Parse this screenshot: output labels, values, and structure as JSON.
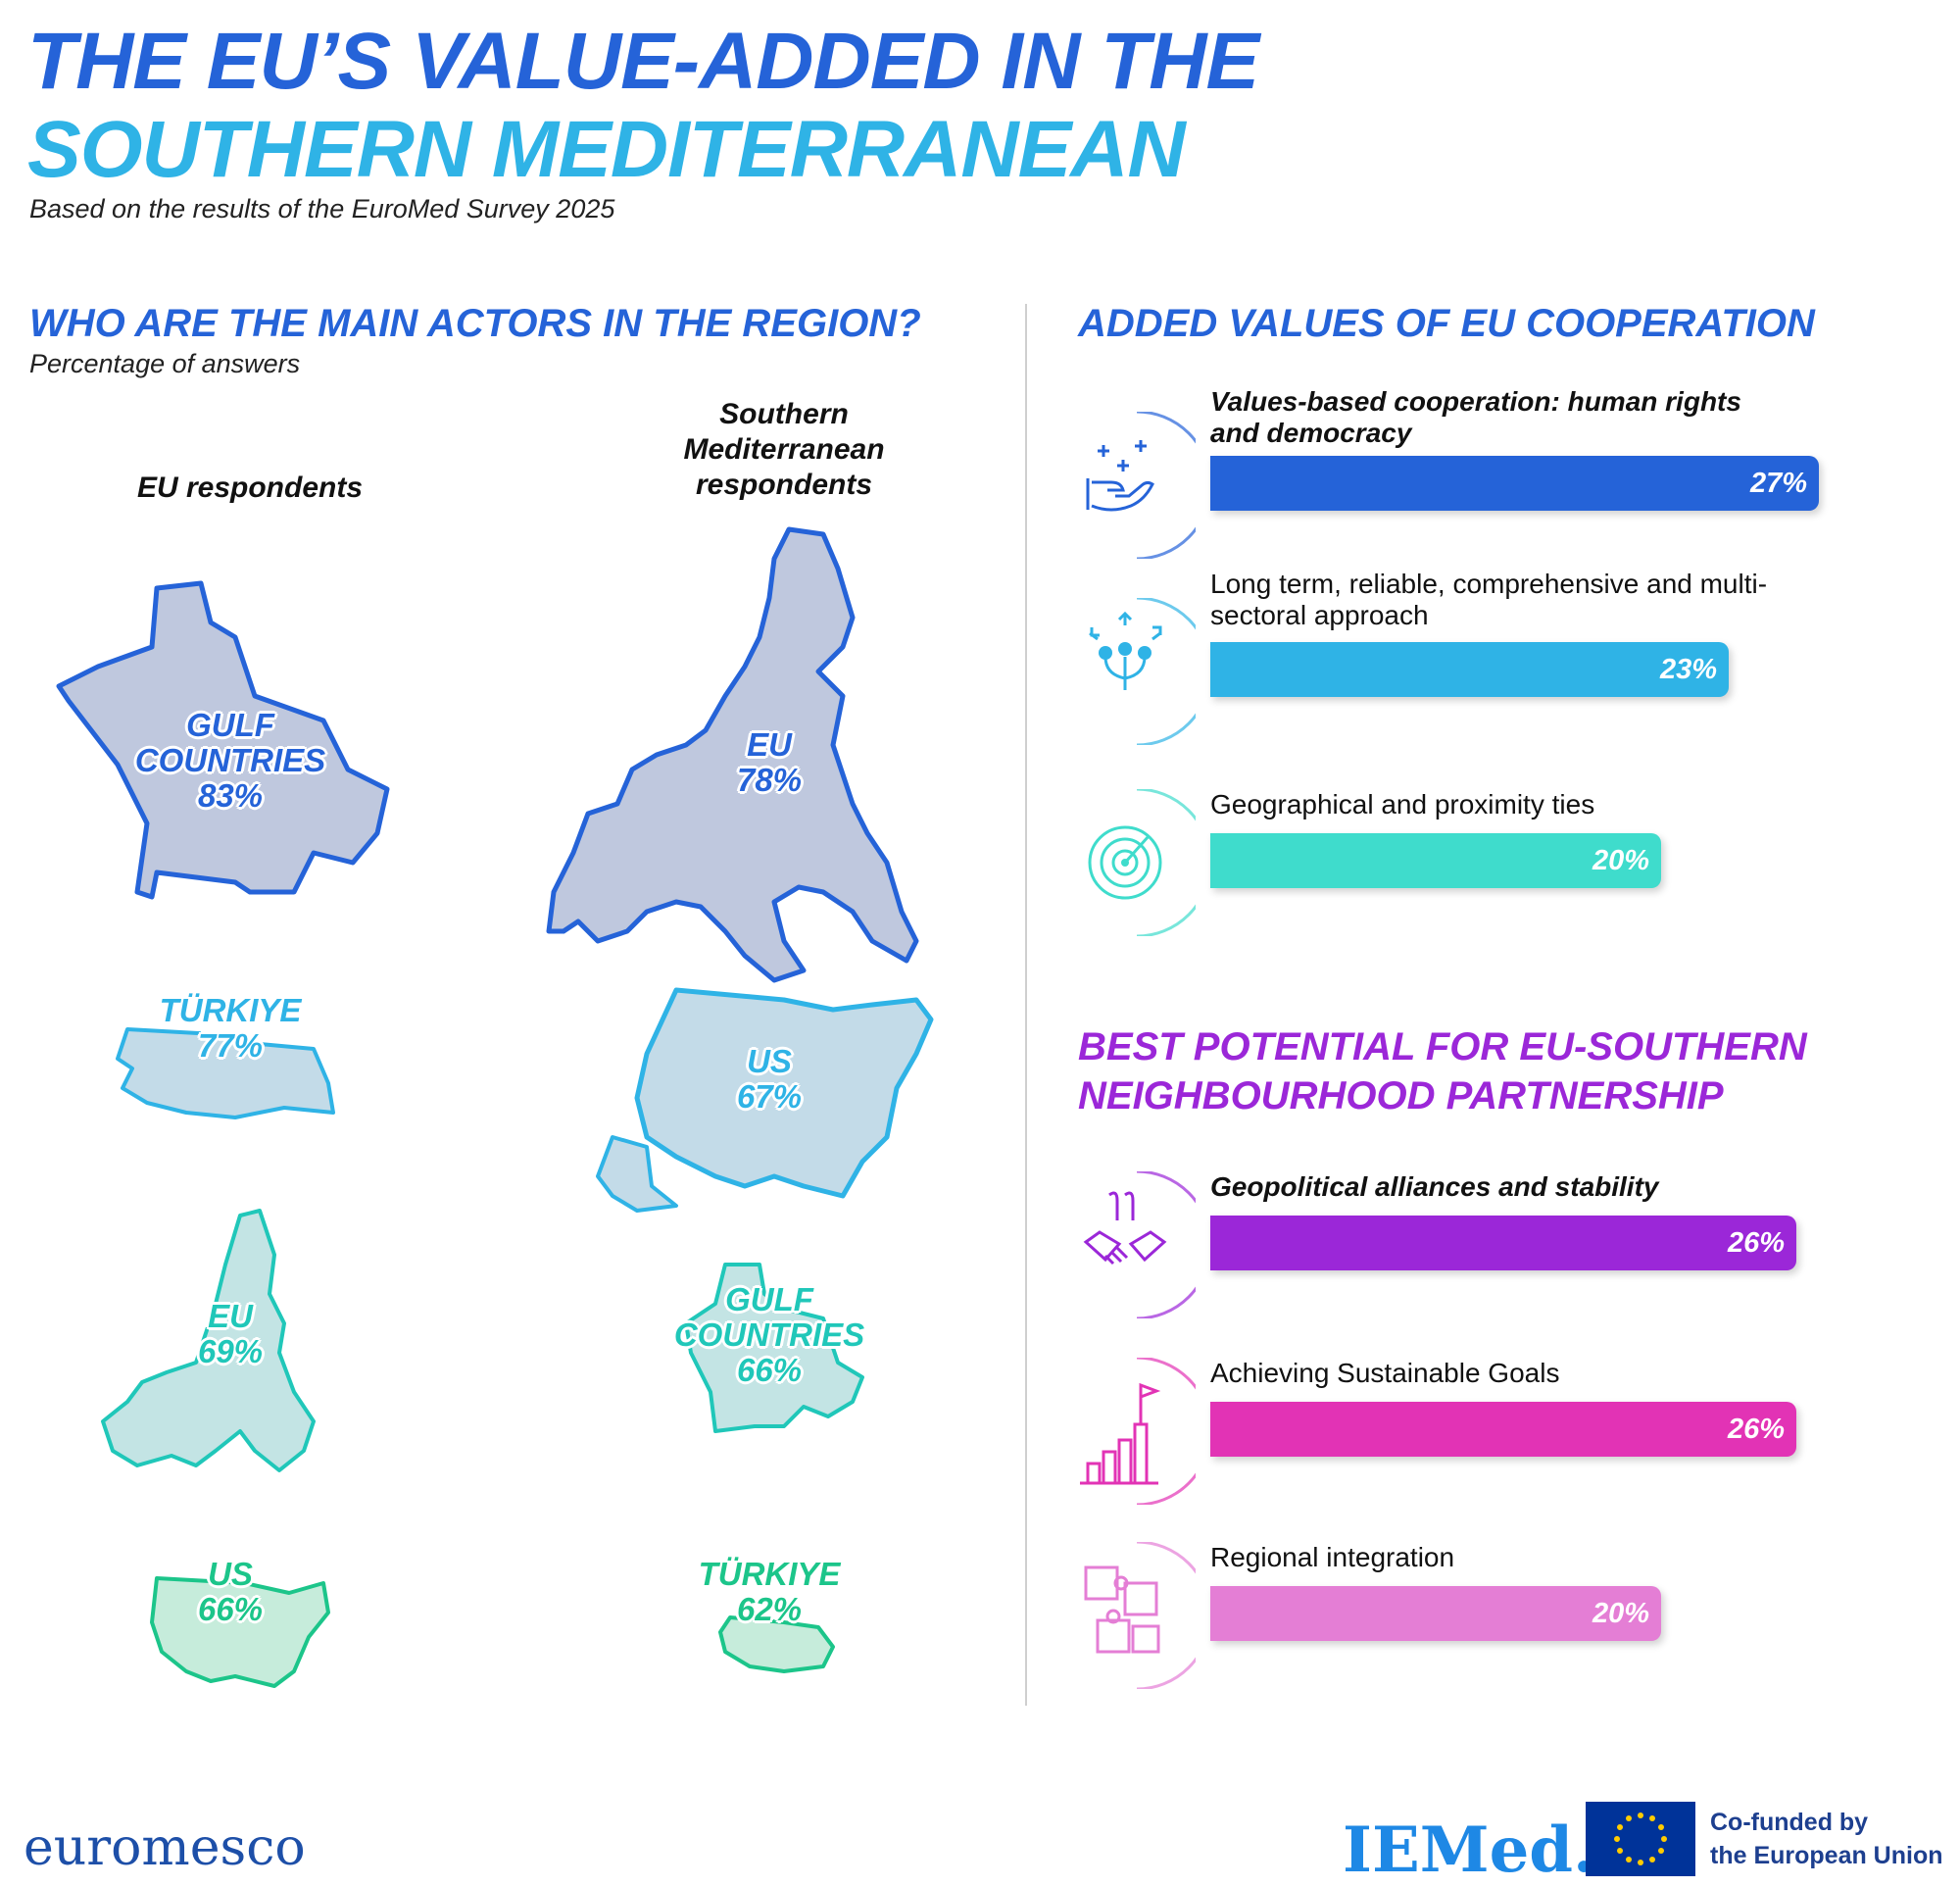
{
  "header": {
    "title_line1": "THE EU’S VALUE-ADDED IN THE",
    "title_line2": "SOUTHERN MEDITERRANEAN",
    "subtitle": "Based on the results of the EuroMed Survey 2025"
  },
  "actors": {
    "heading": "WHO ARE THE MAIN ACTORS IN THE REGION?",
    "note": "Percentage of answers",
    "eu_column_label": "EU respondents",
    "sm_column_label_lines": [
      "Southern",
      "Mediterranean",
      "respondents"
    ]
  },
  "chart_data": [
    {
      "type": "table",
      "title": "WHO ARE THE MAIN ACTORS IN THE REGION?",
      "subtitle": "Percentage of answers",
      "series": [
        {
          "name": "EU respondents",
          "items": [
            {
              "name_lines": [
                "GULF",
                "COUNTRIES"
              ],
              "value": 83,
              "label": "83%",
              "color": "#2563d8"
            },
            {
              "name_lines": [
                "TÜRKIYE"
              ],
              "value": 77,
              "label": "77%",
              "color": "#2fb3e6"
            },
            {
              "name_lines": [
                "EU"
              ],
              "value": 69,
              "label": "69%",
              "color": "#20c7b9"
            },
            {
              "name_lines": [
                "US"
              ],
              "value": 66,
              "label": "66%",
              "color": "#1cc58a"
            }
          ]
        },
        {
          "name": "Southern Mediterranean respondents",
          "items": [
            {
              "name_lines": [
                "EU"
              ],
              "value": 78,
              "label": "78%",
              "color": "#2563d8"
            },
            {
              "name_lines": [
                "US"
              ],
              "value": 67,
              "label": "67%",
              "color": "#2fb3e6"
            },
            {
              "name_lines": [
                "GULF",
                "COUNTRIES"
              ],
              "value": 66,
              "label": "66%",
              "color": "#20c7b9"
            },
            {
              "name_lines": [
                "TÜRKIYE"
              ],
              "value": 62,
              "label": "62%",
              "color": "#1cc58a"
            }
          ]
        }
      ]
    },
    {
      "type": "bar",
      "title": "ADDED VALUES OF EU COOPERATION",
      "categories": [
        "Values-based cooperation: human rights and democracy",
        "Long term, reliable, comprehensive and multi-sectoral approach",
        "Geographical and proximity ties"
      ],
      "label_lines": [
        [
          "Values-based cooperation: human rights",
          "and democracy"
        ],
        [
          "Long term, reliable, comprehensive and multi-",
          "sectoral approach"
        ],
        [
          "Geographical and proximity ties"
        ]
      ],
      "values": [
        27,
        23,
        20
      ],
      "value_labels": [
        "27%",
        "23%",
        "20%"
      ],
      "bold": [
        true,
        false,
        false
      ],
      "colors": [
        "#2563d8",
        "#2fb3e6",
        "#3fdccc"
      ],
      "icons": [
        "care-hand-icon",
        "multi-direction-icon",
        "radar-icon"
      ]
    },
    {
      "type": "bar",
      "title": "BEST POTENTIAL FOR EU-SOUTHERN NEIGHBOURHOOD PARTNERSHIP",
      "title_lines": [
        "BEST POTENTIAL FOR EU-SOUTHERN",
        "NEIGHBOURHOOD PARTNERSHIP"
      ],
      "categories": [
        "Geopolitical alliances and stability",
        "Achieving Sustainable Goals",
        "Regional integration"
      ],
      "label_lines": [
        [
          "Geopolitical alliances and stability"
        ],
        [
          "Achieving Sustainable Goals"
        ],
        [
          "Regional integration"
        ]
      ],
      "values": [
        26,
        26,
        20
      ],
      "value_labels": [
        "26%",
        "26%",
        "20%"
      ],
      "bold": [
        true,
        false,
        false
      ],
      "colors": [
        "#9b27d8",
        "#e233b5",
        "#e47ed5"
      ],
      "icons": [
        "handshake-icon",
        "growth-flag-icon",
        "puzzle-icon"
      ]
    }
  ],
  "colors": {
    "title_blue": "#2563d8",
    "title_cyan": "#2fb3e6",
    "partnership_purple": "#9b27d8"
  },
  "footer": {
    "euromesco_logo": "euromesco",
    "iemed_logo": "IEMed.",
    "cofunded_lines": [
      "Co-funded by",
      "the European Union"
    ]
  }
}
